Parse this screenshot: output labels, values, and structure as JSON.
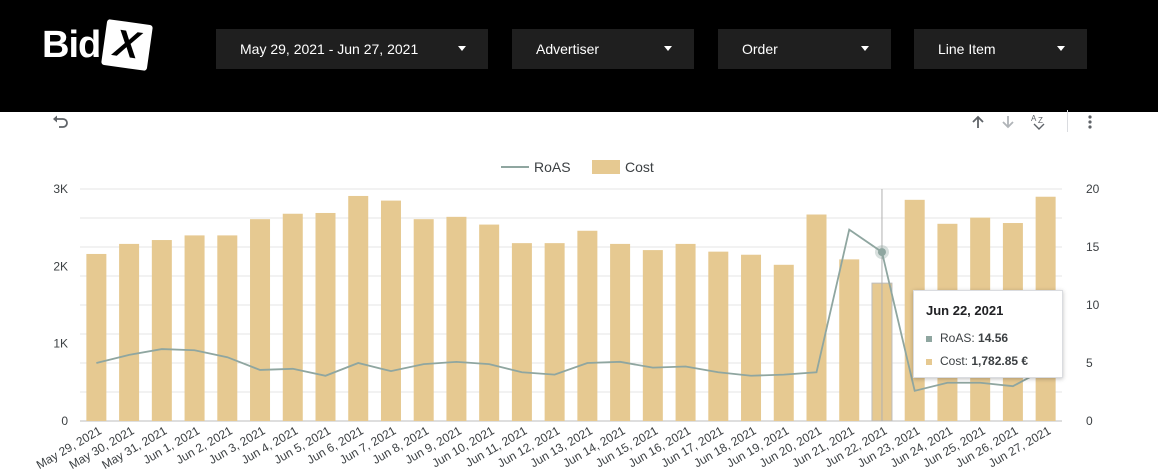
{
  "brand": {
    "name_part1": "Bid",
    "name_part2": "X"
  },
  "filters": [
    {
      "label": "May 29, 2021 - Jun 27, 2021"
    },
    {
      "label": "Advertiser"
    },
    {
      "label": "Order"
    },
    {
      "label": "Line Item"
    }
  ],
  "toolbar": {
    "icons": [
      "undo-icon",
      "sort-ascending-icon",
      "sort-descending-icon",
      "sort-alphabetical-icon",
      "more-vert-icon"
    ]
  },
  "colors": {
    "cost": "#e6c991",
    "roas": "#8fa6a0",
    "topbar": "#000000",
    "filter_bg": "#1f1f1f"
  },
  "chart_data": {
    "type": "bar",
    "legend_position": "top-center",
    "grid": true,
    "categories": [
      "May 29, 2021",
      "May 30, 2021",
      "May 31, 2021",
      "Jun 1, 2021",
      "Jun 2, 2021",
      "Jun 3, 2021",
      "Jun 4, 2021",
      "Jun 5, 2021",
      "Jun 6, 2021",
      "Jun 7, 2021",
      "Jun 8, 2021",
      "Jun 9, 2021",
      "Jun 10, 2021",
      "Jun 11, 2021",
      "Jun 12, 2021",
      "Jun 13, 2021",
      "Jun 14, 2021",
      "Jun 15, 2021",
      "Jun 16, 2021",
      "Jun 17, 2021",
      "Jun 18, 2021",
      "Jun 19, 2021",
      "Jun 20, 2021",
      "Jun 21, 2021",
      "Jun 22, 2021",
      "Jun 23, 2021",
      "Jun 24, 2021",
      "Jun 25, 2021",
      "Jun 26, 2021",
      "Jun 27, 2021"
    ],
    "series": [
      {
        "name": "Cost",
        "type": "bar",
        "axis": "left",
        "values": [
          2160,
          2290,
          2340,
          2400,
          2400,
          2610,
          2680,
          2690,
          2910,
          2850,
          2610,
          2640,
          2540,
          2300,
          2300,
          2460,
          2290,
          2210,
          2290,
          2190,
          2150,
          2020,
          2670,
          2090,
          1782.85,
          2860,
          2550,
          2630,
          2560,
          2900
        ]
      },
      {
        "name": "RoAS",
        "type": "line",
        "axis": "right",
        "values": [
          5.0,
          5.7,
          6.2,
          6.1,
          5.5,
          4.4,
          4.5,
          3.9,
          5.0,
          4.3,
          4.9,
          5.1,
          4.9,
          4.2,
          4.0,
          5.0,
          5.1,
          4.6,
          4.7,
          4.2,
          3.9,
          4.0,
          4.2,
          16.5,
          14.56,
          2.6,
          3.3,
          3.3,
          3.0,
          4.5
        ]
      }
    ],
    "left_axis": {
      "ticks": [
        "0",
        "1K",
        "2K",
        "3K"
      ],
      "ylim": [
        0,
        3000
      ]
    },
    "right_axis": {
      "ticks": [
        "0",
        "5",
        "10",
        "15",
        "20"
      ],
      "ylim": [
        0,
        20
      ]
    },
    "legend": [
      {
        "label": "RoAS"
      },
      {
        "label": "Cost"
      }
    ],
    "tooltip": {
      "date": "Jun 22, 2021",
      "roas_label": "RoAS:",
      "roas_value": "14.56",
      "cost_label": "Cost:",
      "cost_value": "1,782.85 €"
    }
  }
}
